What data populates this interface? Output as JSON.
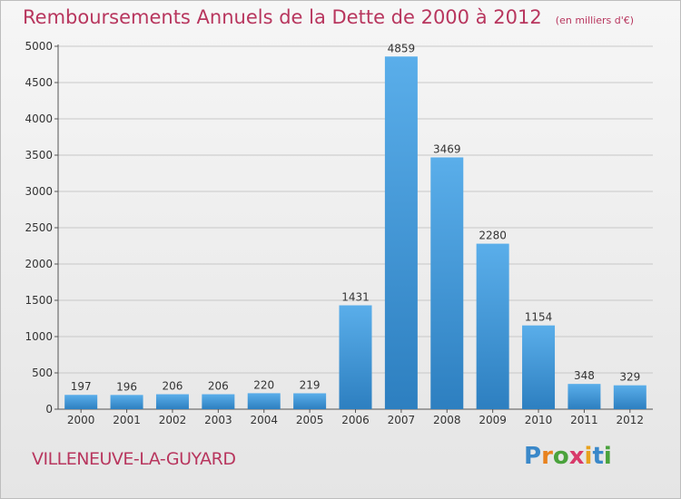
{
  "title": "Remboursements Annuels de la Dette de 2000 à 2012",
  "subtitle": "(en milliers d'€)",
  "city": "VILLENEUVE-LA-GUYARD",
  "logo": {
    "text": "Proxiti",
    "letters": [
      "P",
      "r",
      "o",
      "x",
      "i",
      "t",
      "i"
    ],
    "colors": [
      "#3a88c9",
      "#e8821e",
      "#4aa23c",
      "#d83a6a",
      "#e8a21e",
      "#3a88c9",
      "#4aa23c"
    ]
  },
  "colors": {
    "bar_top": "#5aaeea",
    "bar_bottom": "#2d7fc0",
    "title": "#b8365e",
    "axis": "#555555",
    "grid": "#c8c8c8"
  },
  "chart_data": {
    "type": "bar",
    "categories": [
      "2000",
      "2001",
      "2002",
      "2003",
      "2004",
      "2005",
      "2006",
      "2007",
      "2008",
      "2009",
      "2010",
      "2011",
      "2012"
    ],
    "values": [
      197,
      196,
      206,
      206,
      220,
      219,
      1431,
      4859,
      3469,
      2280,
      1154,
      348,
      329
    ],
    "ylim": [
      0,
      5000
    ],
    "yticks": [
      0,
      500,
      1000,
      1500,
      2000,
      2500,
      3000,
      3500,
      4000,
      4500,
      5000
    ],
    "grid": true,
    "xlabel": "",
    "ylabel": ""
  }
}
